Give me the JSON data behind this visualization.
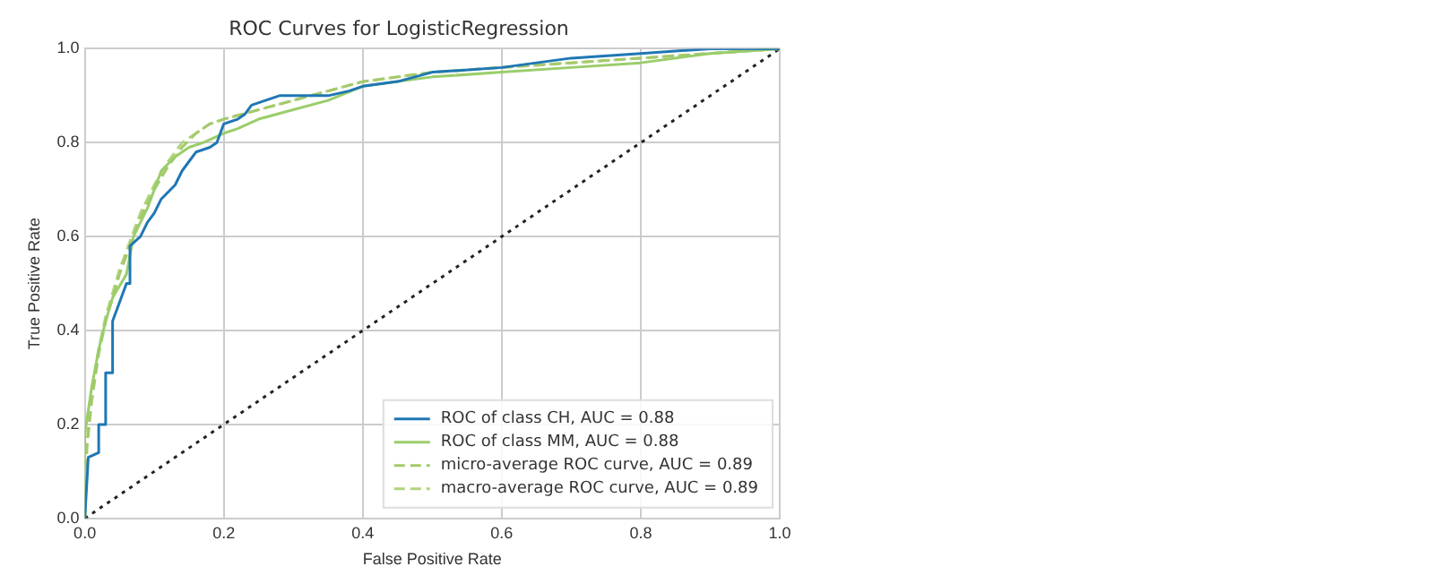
{
  "chart_data": {
    "type": "line",
    "title": "ROC Curves for LogisticRegression",
    "xlabel": "False Positive Rate",
    "ylabel": "True Positive Rate",
    "xlim": [
      0,
      1
    ],
    "ylim": [
      0,
      1
    ],
    "xticks": [
      {
        "value": 0,
        "label": "0.0"
      },
      0.2,
      0.4,
      0.6,
      0.8,
      {
        "value": 1,
        "label": "1.0"
      }
    ],
    "yticks": [
      {
        "value": 0,
        "label": "0.0"
      },
      0.2,
      0.4,
      0.6,
      0.8,
      {
        "value": 1,
        "label": "1.0"
      }
    ],
    "grid": true,
    "legend": "bottom right",
    "marker": "none",
    "series": [
      {
        "name": "ROC of class CH, AUC = 0.88",
        "color": "#1f77b4",
        "line_style": "solid",
        "x": [
          0,
          0.005,
          0.02,
          0.02,
          0.03,
          0.03,
          0.04,
          0.04,
          0.05,
          0.06,
          0.065,
          0.065,
          0.08,
          0.09,
          0.1,
          0.11,
          0.13,
          0.14,
          0.15,
          0.16,
          0.18,
          0.19,
          0.2,
          0.22,
          0.23,
          0.24,
          0.26,
          0.28,
          0.35,
          0.38,
          0.4,
          0.45,
          0.5,
          0.6,
          0.7,
          0.8,
          0.9,
          1
        ],
        "values": [
          0,
          0.13,
          0.14,
          0.2,
          0.2,
          0.31,
          0.31,
          0.42,
          0.46,
          0.5,
          0.5,
          0.58,
          0.6,
          0.63,
          0.65,
          0.68,
          0.71,
          0.74,
          0.76,
          0.78,
          0.79,
          0.8,
          0.84,
          0.85,
          0.86,
          0.88,
          0.89,
          0.9,
          0.9,
          0.91,
          0.92,
          0.93,
          0.95,
          0.96,
          0.98,
          0.99,
          1,
          1
        ]
      },
      {
        "name": "ROC of class MM, AUC = 0.88",
        "color": "#9acd6b",
        "line_style": "solid",
        "x": [
          0,
          0,
          0.01,
          0.02,
          0.03,
          0.04,
          0.06,
          0.07,
          0.09,
          0.1,
          0.11,
          0.13,
          0.15,
          0.17,
          0.2,
          0.22,
          0.25,
          0.3,
          0.35,
          0.4,
          0.45,
          0.5,
          0.6,
          0.7,
          0.8,
          0.9,
          1
        ],
        "values": [
          0,
          0.18,
          0.28,
          0.36,
          0.42,
          0.47,
          0.52,
          0.6,
          0.66,
          0.7,
          0.74,
          0.77,
          0.79,
          0.8,
          0.82,
          0.83,
          0.85,
          0.87,
          0.89,
          0.92,
          0.93,
          0.94,
          0.95,
          0.96,
          0.97,
          0.99,
          1
        ]
      },
      {
        "name": "micro-average ROC curve, AUC = 0.89",
        "color": "#a5c96b",
        "line_style": "dashed",
        "x": [
          0,
          0.003,
          0.01,
          0.02,
          0.03,
          0.04,
          0.05,
          0.06,
          0.07,
          0.08,
          0.1,
          0.12,
          0.14,
          0.16,
          0.18,
          0.2,
          0.25,
          0.3,
          0.35,
          0.4,
          0.5,
          0.6,
          0.7,
          0.8,
          0.9,
          1
        ],
        "values": [
          0,
          0.15,
          0.25,
          0.35,
          0.42,
          0.47,
          0.52,
          0.56,
          0.6,
          0.64,
          0.7,
          0.75,
          0.79,
          0.82,
          0.84,
          0.85,
          0.87,
          0.89,
          0.91,
          0.93,
          0.95,
          0.96,
          0.97,
          0.98,
          0.99,
          1
        ]
      },
      {
        "name": "macro-average ROC curve, AUC = 0.89",
        "color": "#b2d47e",
        "line_style": "dashed",
        "x": [
          0,
          0.003,
          0.01,
          0.02,
          0.03,
          0.04,
          0.05,
          0.06,
          0.07,
          0.08,
          0.1,
          0.12,
          0.14,
          0.16,
          0.18,
          0.2,
          0.25,
          0.3,
          0.35,
          0.4,
          0.5,
          0.6,
          0.7,
          0.8,
          0.9,
          1
        ],
        "values": [
          0,
          0.16,
          0.27,
          0.36,
          0.43,
          0.48,
          0.53,
          0.57,
          0.61,
          0.65,
          0.71,
          0.76,
          0.8,
          0.82,
          0.84,
          0.85,
          0.87,
          0.89,
          0.91,
          0.93,
          0.95,
          0.96,
          0.97,
          0.98,
          0.99,
          1
        ]
      },
      {
        "color": "#222222",
        "line_style": "dotted",
        "x": [
          0,
          1
        ],
        "values": [
          0,
          1
        ]
      }
    ]
  }
}
